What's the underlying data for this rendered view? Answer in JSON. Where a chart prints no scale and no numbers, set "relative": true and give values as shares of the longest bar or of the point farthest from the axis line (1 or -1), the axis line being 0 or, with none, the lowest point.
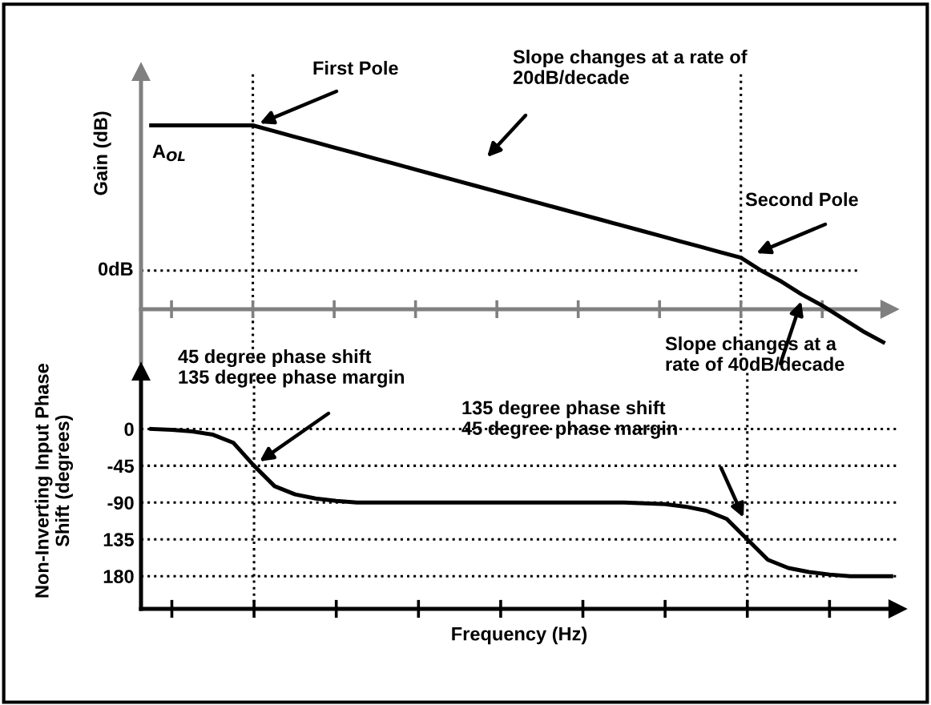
{
  "chart_data": [
    {
      "type": "line",
      "ylabel": "Gain (dB)",
      "relative": true,
      "color": "#000000",
      "categories": [
        null,
        null,
        null,
        null,
        null,
        null,
        null,
        null,
        null,
        null,
        null,
        null,
        null,
        null,
        null,
        null,
        null,
        null,
        null,
        null,
        null,
        null,
        null,
        null,
        null,
        null,
        null,
        null,
        null,
        null,
        null,
        null,
        null,
        null,
        null,
        null,
        null
      ],
      "values": [
        1,
        1,
        1,
        1,
        1,
        1,
        0.97,
        0.94,
        0.91,
        0.88,
        0.85,
        0.82,
        0.79,
        0.76,
        0.73,
        0.7,
        0.67,
        0.64,
        0.61,
        0.58,
        0.55,
        0.52,
        0.49,
        0.46,
        0.43,
        0.4,
        0.37,
        0.34,
        0.31,
        0.28,
        0.21,
        0.15,
        0.08,
        0.02,
        -0.05,
        -0.12,
        -0.18
      ],
      "tick_labels": false,
      "grid": false,
      "line_style": "solid",
      "ref_lines": [
        {
          "axis": "y",
          "value": 0.21,
          "label": "0dB",
          "line_style": "dotted",
          "color": "#000000"
        }
      ],
      "annotations": [
        "First Pole",
        "Slope changes at a rate of\n20dB/decade",
        "Second Pole",
        "Slope changes at a\nrate of 40dB/decade",
        "A$_{OL}$"
      ]
    },
    {
      "type": "line",
      "xlabel": "Frequency (Hz)",
      "ylabel": "Non-Inverting Input Phase\nShift (degrees)",
      "color": "#000000",
      "categories": [
        null,
        null,
        null,
        null,
        null,
        null,
        null,
        null,
        null,
        null,
        null,
        null,
        null,
        null,
        null,
        null,
        null,
        null,
        null,
        null,
        null,
        null,
        null,
        null,
        null,
        null,
        null,
        null,
        null,
        null,
        null,
        null,
        null,
        null,
        null,
        null,
        null
      ],
      "values": [
        0,
        -1,
        -3,
        -7,
        -17,
        -45,
        -70,
        -80,
        -85,
        -88,
        -90,
        -90,
        -90,
        -90,
        -90,
        -90,
        -90,
        -90,
        -90,
        -90,
        -90,
        -90,
        -90,
        -90,
        -91,
        -92,
        -95,
        -100,
        -110,
        -135,
        -160,
        -170,
        -175,
        -178,
        -180,
        -180,
        -180
      ],
      "ylim": [
        -220,
        70
      ],
      "yticks": [
        {
          "value": 0,
          "label": "0"
        },
        {
          "value": -45,
          "label": "-45"
        },
        {
          "value": -90,
          "label": "-90"
        },
        {
          "value": -135,
          "label": "135"
        },
        {
          "value": -180,
          "label": "180"
        }
      ],
      "tick_labels": "y",
      "grid": "y",
      "line_style": "solid",
      "annotations": [
        "45 degree phase shift\n135 degree phase margin",
        "135 degree phase shift\n45 degree phase margin"
      ]
    }
  ]
}
